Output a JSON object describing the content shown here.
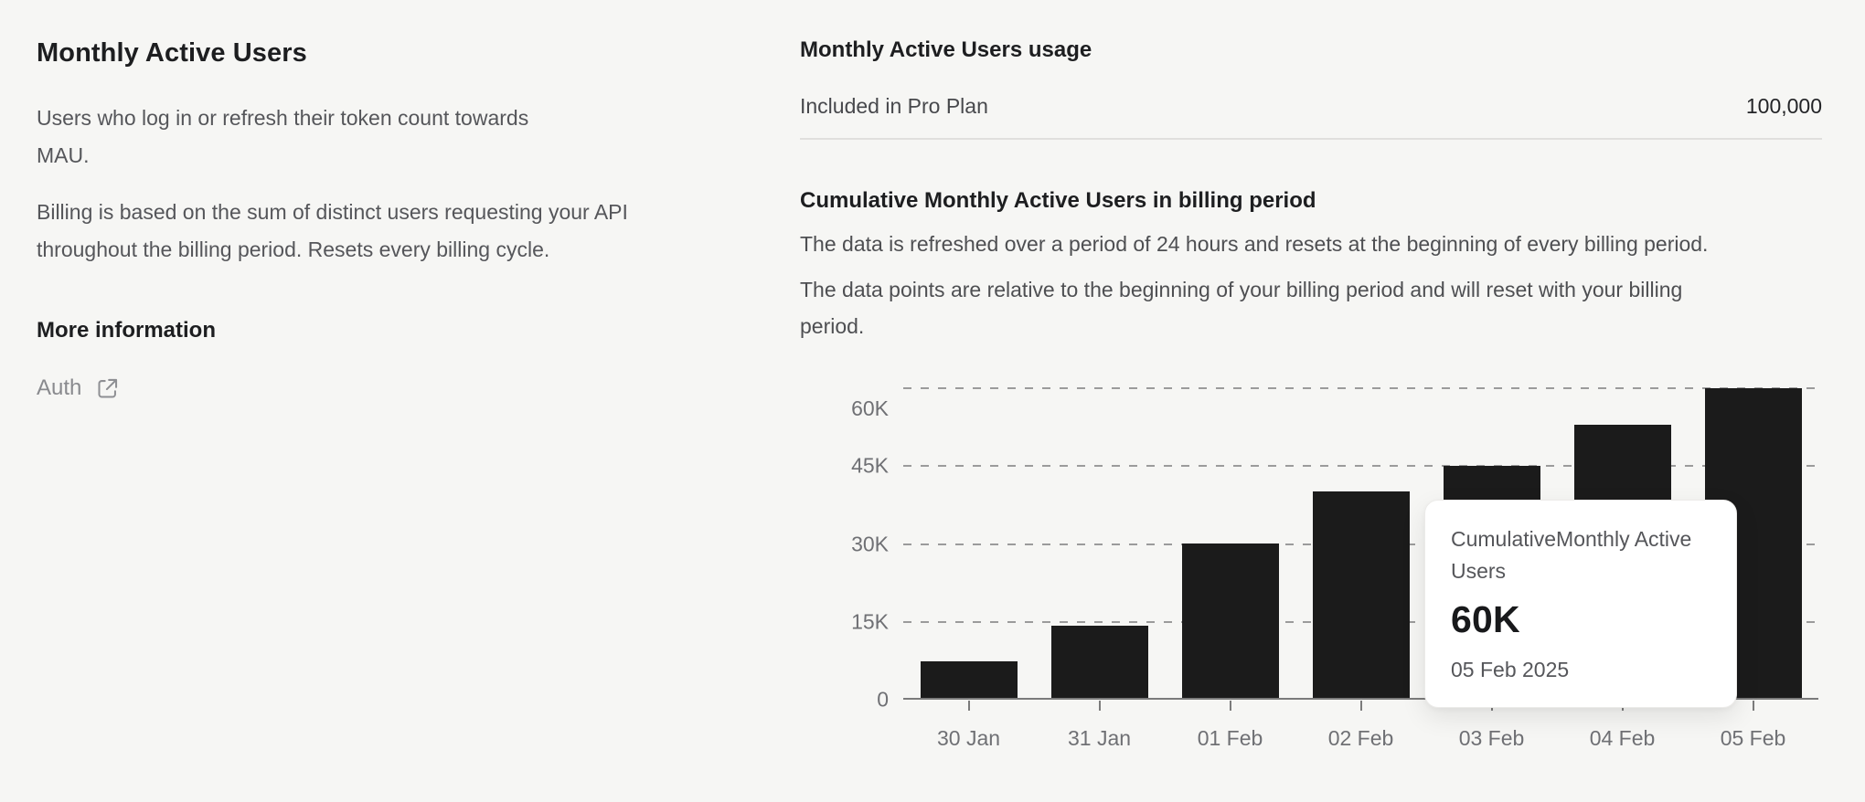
{
  "left_panel": {
    "title": "Monthly Active Users",
    "description_1": "Users who log in or refresh their token count towards MAU.",
    "description_2": "Billing is based on the sum of distinct users requesting your API throughout the billing period. Resets every billing cycle.",
    "more_info_title": "More information",
    "auth_label": "Auth"
  },
  "usage_panel": {
    "title": "Monthly Active Users usage",
    "plan_label": "Included in Pro Plan",
    "plan_value": "100,000",
    "cumulative_title": "Cumulative Monthly Active Users in billing period",
    "description_1": "The data is refreshed over a period of 24 hours and resets at the beginning of every billing period.",
    "description_2": "The data points are relative to the beginning of your billing period and will reset with your billing period."
  },
  "chart_tooltip": {
    "series_label": "CumulativeMonthly Active Users",
    "value": "60K",
    "date": "05 Feb 2025"
  },
  "chart_data": {
    "type": "bar",
    "title": "Cumulative Monthly Active Users in billing period",
    "categories": [
      "30 Jan",
      "31 Jan",
      "01 Feb",
      "02 Feb",
      "03 Feb",
      "04 Feb",
      "05 Feb"
    ],
    "values": [
      7000,
      14000,
      30000,
      40000,
      45000,
      53000,
      60000
    ],
    "xlabel": "",
    "ylabel": "",
    "ylim": [
      0,
      60000
    ],
    "ytick_labels": [
      "0",
      "15K",
      "30K",
      "45K",
      "60K"
    ],
    "ytick_values": [
      0,
      15000,
      30000,
      45000,
      60000
    ],
    "grid": "horizontal-dashed",
    "legend": "none",
    "bar_color": "#1b1b1b",
    "hovered_bar": "05 Feb"
  },
  "colors": {
    "background": "#f6f6f4",
    "text_primary": "#1d1e20",
    "text_secondary": "#55565a",
    "muted_link": "#898a8e",
    "divider": "#e0dfdd",
    "bar": "#1b1b1b",
    "gridline": "#9b9b9b",
    "axis": "#7b7b7b",
    "tooltip_background": "#ffffff"
  }
}
